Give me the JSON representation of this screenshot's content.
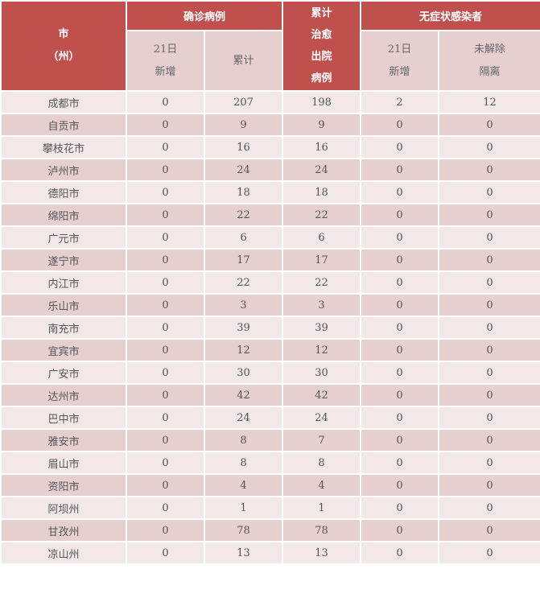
{
  "colors": {
    "header": "#c0504d",
    "subheader": "#e6cfcf",
    "row_light": "#f2e8e8",
    "row_dark": "#e6cfcf"
  },
  "header": {
    "city_line1": "市",
    "city_line2": "（州）",
    "confirmed": "确诊病例",
    "new_line1": "21日",
    "new_line2": "新增",
    "cumulative": "累计",
    "cured": [
      "累计",
      "治愈",
      "出院",
      "病例"
    ],
    "asymptomatic": "无症状感染者",
    "asym_new_line1": "21日",
    "asym_new_line2": "新增",
    "asym_iso_line1": "未解除",
    "asym_iso_line2": "隔离"
  },
  "rows": [
    [
      "成都市",
      "0",
      "207",
      "198",
      "2",
      "12"
    ],
    [
      "自贡市",
      "0",
      "9",
      "9",
      "0",
      "0"
    ],
    [
      "攀枝花市",
      "0",
      "16",
      "16",
      "0",
      "0"
    ],
    [
      "泸州市",
      "0",
      "24",
      "24",
      "0",
      "0"
    ],
    [
      "德阳市",
      "0",
      "18",
      "18",
      "0",
      "0"
    ],
    [
      "绵阳市",
      "0",
      "22",
      "22",
      "0",
      "0"
    ],
    [
      "广元市",
      "0",
      "6",
      "6",
      "0",
      "0"
    ],
    [
      "遂宁市",
      "0",
      "17",
      "17",
      "0",
      "0"
    ],
    [
      "内江市",
      "0",
      "22",
      "22",
      "0",
      "0"
    ],
    [
      "乐山市",
      "0",
      "3",
      "3",
      "0",
      "0"
    ],
    [
      "南充市",
      "0",
      "39",
      "39",
      "0",
      "0"
    ],
    [
      "宜宾市",
      "0",
      "12",
      "12",
      "0",
      "0"
    ],
    [
      "广安市",
      "0",
      "30",
      "30",
      "0",
      "0"
    ],
    [
      "达州市",
      "0",
      "42",
      "42",
      "0",
      "0"
    ],
    [
      "巴中市",
      "0",
      "24",
      "24",
      "0",
      "0"
    ],
    [
      "雅安市",
      "0",
      "8",
      "7",
      "0",
      "0"
    ],
    [
      "眉山市",
      "0",
      "8",
      "8",
      "0",
      "0"
    ],
    [
      "资阳市",
      "0",
      "4",
      "4",
      "0",
      "0"
    ],
    [
      "阿坝州",
      "0",
      "1",
      "1",
      "0",
      "0"
    ],
    [
      "甘孜州",
      "0",
      "78",
      "78",
      "0",
      "0"
    ],
    [
      "凉山州",
      "0",
      "13",
      "13",
      "0",
      "0"
    ]
  ]
}
